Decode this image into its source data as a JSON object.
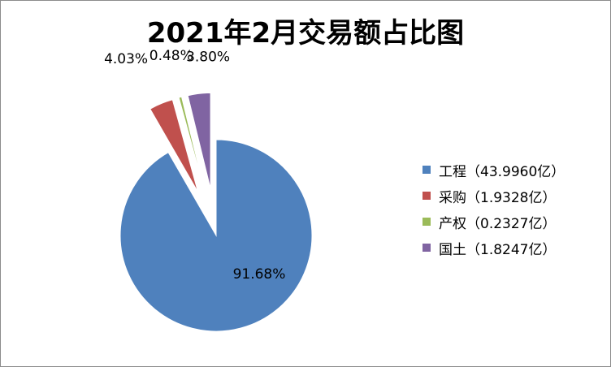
{
  "chart_data": {
    "type": "pie",
    "title": "2021年2月交易额占比图",
    "colors": [
      "#4f81bd",
      "#c0504d",
      "#9bbb59",
      "#8064a2"
    ],
    "slices": [
      {
        "value": 91.68,
        "data_label": "91.68%",
        "legend": "工程（43.9960亿）"
      },
      {
        "value": 4.03,
        "data_label": "4.03%",
        "legend": "采购（1.9328亿）"
      },
      {
        "value": 0.48,
        "data_label": "0.48%",
        "legend": "产权（0.2327亿）"
      },
      {
        "value": 3.8,
        "data_label": "3.80%",
        "legend": "国土（1.8247亿）"
      }
    ],
    "legend_position": "right",
    "exploded_slices": [
      1,
      2,
      3
    ]
  }
}
